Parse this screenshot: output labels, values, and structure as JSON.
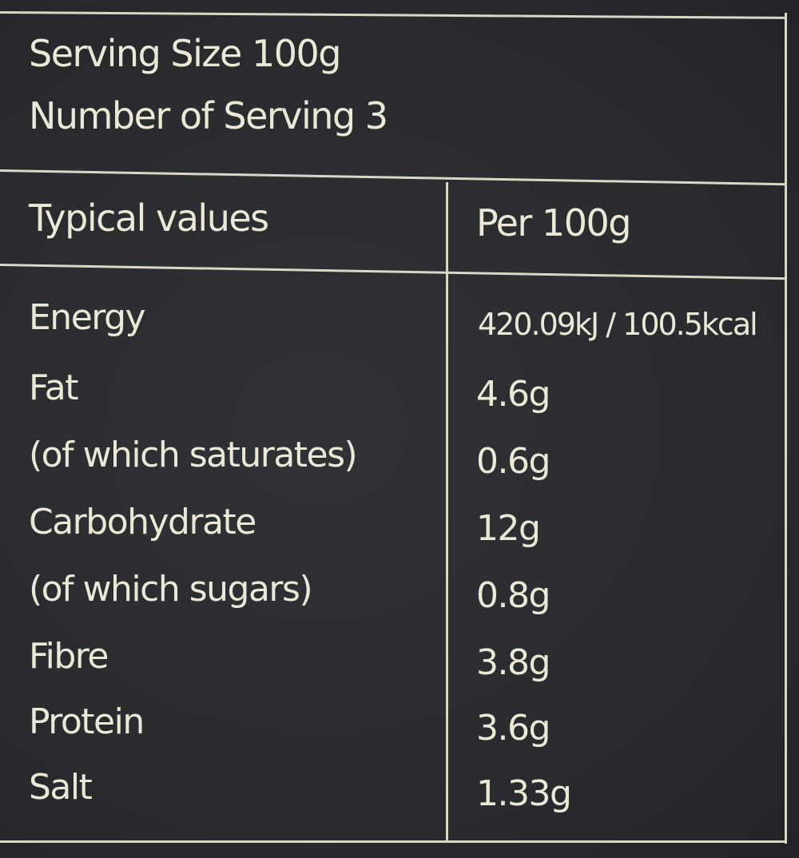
{
  "serving": {
    "size": "Serving Size 100g",
    "count": "Number of Serving 3"
  },
  "table": {
    "headers": [
      "Typical values",
      "Per 100g"
    ],
    "rows": [
      {
        "label": "Energy",
        "value": "420.09kJ / 100.5kcal"
      },
      {
        "label": "Fat",
        "value": "4.6g"
      },
      {
        "label": "(of which saturates)",
        "value": "0.6g"
      },
      {
        "label": "Carbohydrate",
        "value": "12g"
      },
      {
        "label": "(of which sugars)",
        "value": "0.8g"
      },
      {
        "label": "Fibre",
        "value": "3.8g"
      },
      {
        "label": "Protein",
        "value": "3.6g"
      },
      {
        "label": "Salt",
        "value": "1.33g"
      }
    ]
  },
  "colors": {
    "background": "#2a2c30",
    "text": "#ebe9d6",
    "lines": "#d9d7c6"
  }
}
